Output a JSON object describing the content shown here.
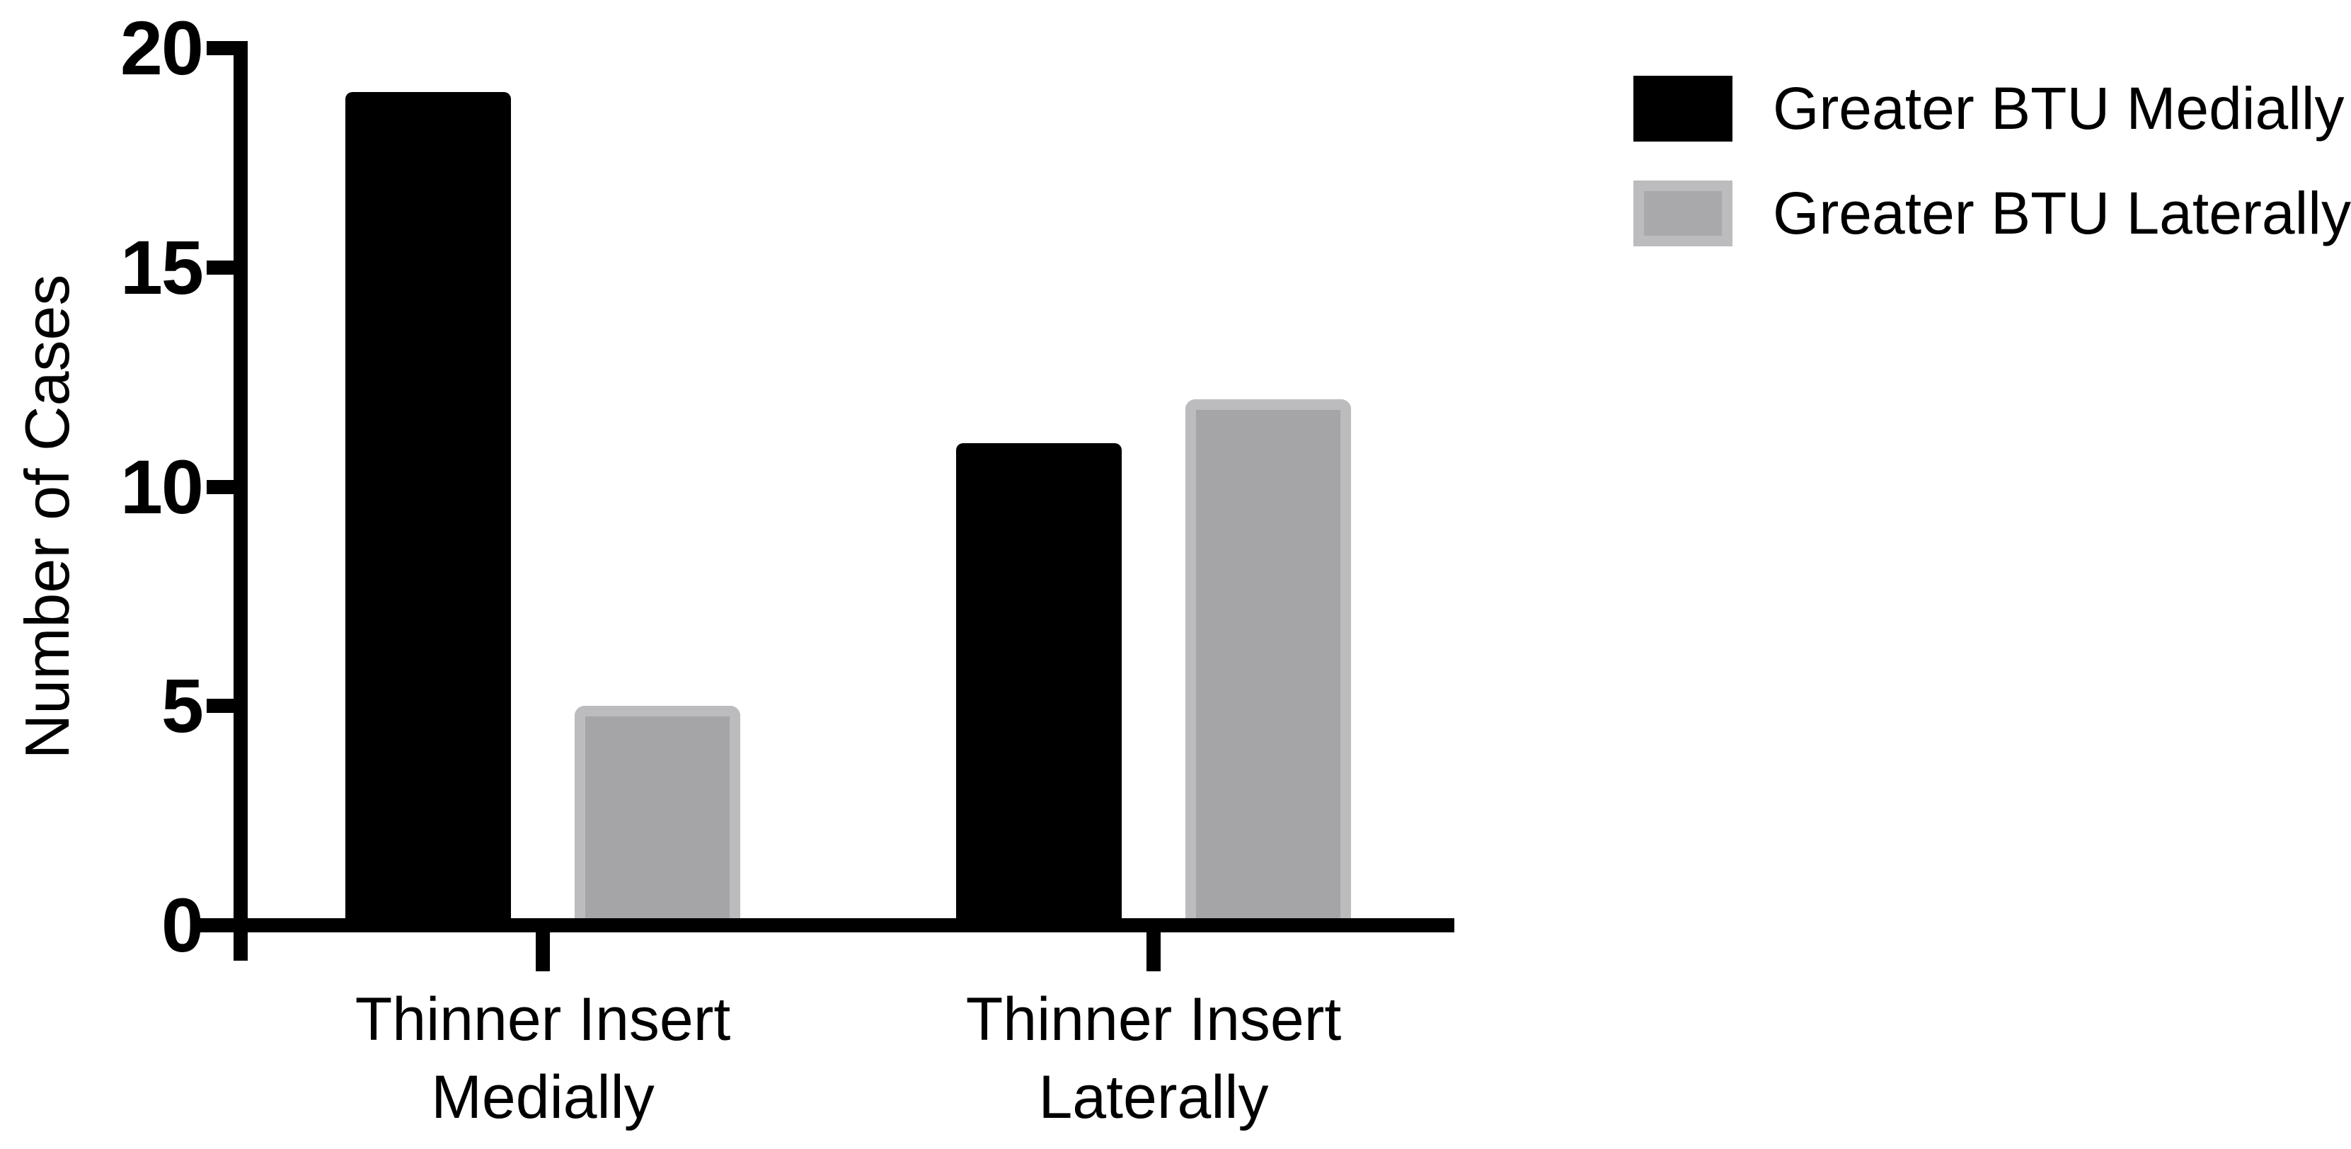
{
  "chart_data": {
    "type": "bar",
    "title": "",
    "xlabel": "",
    "ylabel": "Number of Cases",
    "categories": [
      "Thinner Insert\nMedially",
      "Thinner Insert\nLaterally"
    ],
    "series": [
      {
        "name": "Greater BTU Medially",
        "color": "#000000",
        "border_color": "#000000",
        "values": [
          19,
          11
        ]
      },
      {
        "name": "Greater BTU Laterally",
        "color": "#a5a5a8",
        "border_color": "#bcbcbe",
        "values": [
          5,
          12
        ]
      }
    ],
    "y_axis": {
      "ticks": [
        0,
        5,
        10,
        15,
        20
      ],
      "range": [
        0,
        20
      ],
      "tick_labels": [
        "0",
        "5",
        "10",
        "15",
        "20"
      ]
    },
    "legend_position": "top-right",
    "legend_entries": [
      "Greater BTU Medially",
      "Greater BTU Laterally"
    ],
    "grid": false,
    "background_color": "#ffffff",
    "axis_color": "#000000"
  }
}
